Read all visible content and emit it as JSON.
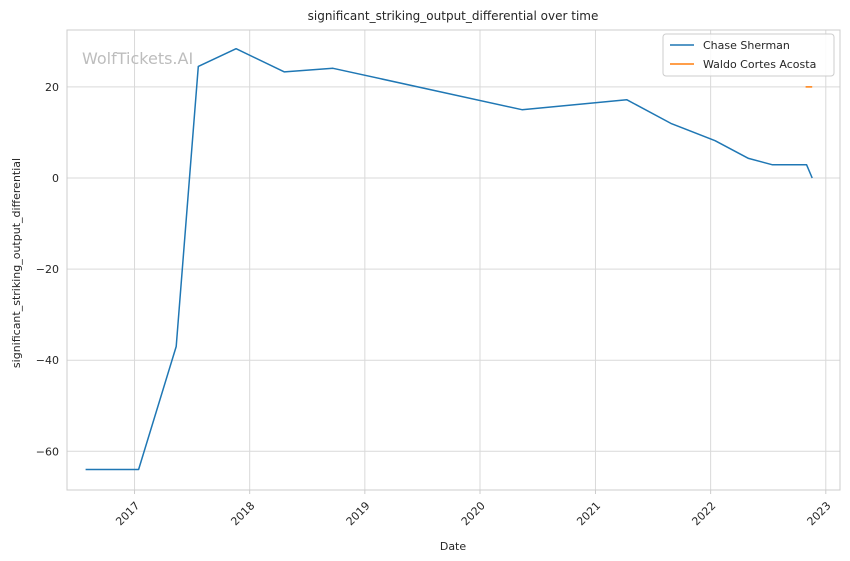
{
  "chart_data": {
    "type": "line",
    "title": "significant_striking_output_differential over time",
    "xlabel": "Date",
    "ylabel": "significant_striking_output_differential",
    "watermark": "WolfTickets.AI",
    "x_tick_labels": [
      "2017",
      "2018",
      "2019",
      "2020",
      "2021",
      "2022",
      "2023"
    ],
    "y_ticks": [
      -60,
      -40,
      -20,
      0,
      20
    ],
    "y_tick_labels": [
      "−60",
      "−40",
      "−20",
      "0",
      "20"
    ],
    "xlim": [
      "2016-06-01",
      "2023-02-15"
    ],
    "ylim": [
      -68.5,
      32.5
    ],
    "grid": true,
    "legend_position": "top-right",
    "colors": {
      "grid": "#d9d9d9",
      "axis": "#cccccc",
      "text": "#262626"
    },
    "series": [
      {
        "name": "Chase Sherman",
        "color": "#1f77b4",
        "points": [
          {
            "x": "2016-07-30",
            "y": -64
          },
          {
            "x": "2017-01-14",
            "y": -64
          },
          {
            "x": "2017-05-13",
            "y": -37
          },
          {
            "x": "2017-07-22",
            "y": 24.5
          },
          {
            "x": "2017-11-19",
            "y": 28.4
          },
          {
            "x": "2018-04-21",
            "y": 23.3
          },
          {
            "x": "2018-09-22",
            "y": 24.1
          },
          {
            "x": "2020-05-13",
            "y": 15.0
          },
          {
            "x": "2021-04-10",
            "y": 17.2
          },
          {
            "x": "2021-08-28",
            "y": 12.0
          },
          {
            "x": "2022-01-15",
            "y": 8.2
          },
          {
            "x": "2022-05-01",
            "y": 4.3
          },
          {
            "x": "2022-07-16",
            "y": 2.9
          },
          {
            "x": "2022-11-01",
            "y": 2.9
          },
          {
            "x": "2022-11-19",
            "y": 0
          }
        ]
      },
      {
        "name": "Waldo Cortes Acosta",
        "color": "#ff7f0e",
        "points": [
          {
            "x": "2022-10-29",
            "y": 20
          },
          {
            "x": "2022-11-19",
            "y": 20
          }
        ]
      }
    ]
  }
}
